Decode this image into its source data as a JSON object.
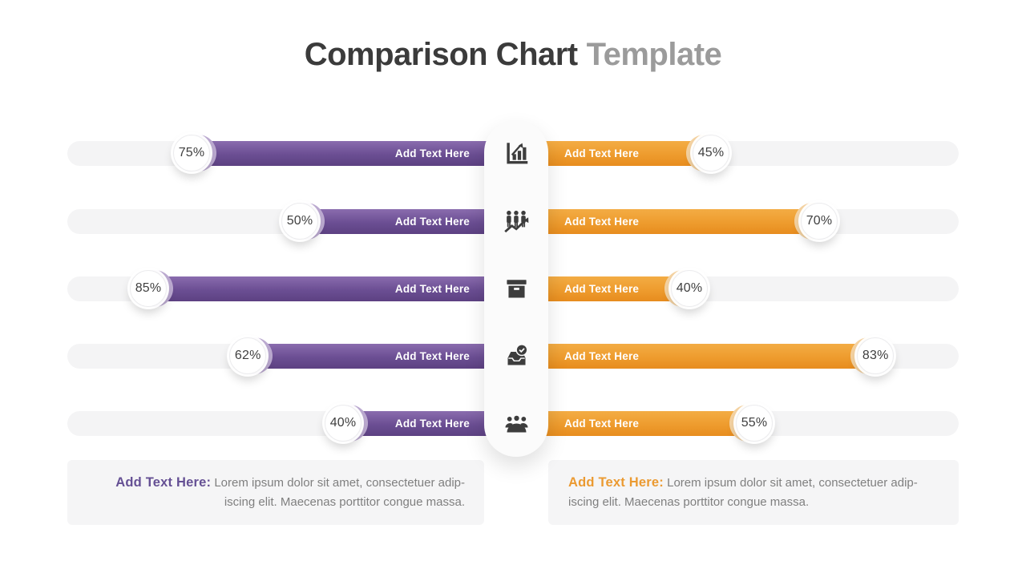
{
  "title": {
    "dark": "Comparison Chart",
    "gray": "Template"
  },
  "rows": [
    {
      "icon": "bar-chart-growth-icon",
      "left": {
        "label": "Add Text Here",
        "pct": "75%",
        "value": 75
      },
      "right": {
        "label": "Add Text Here",
        "pct": "45%",
        "value": 45
      }
    },
    {
      "icon": "people-growth-icon",
      "left": {
        "label": "Add Text Here",
        "pct": "50%",
        "value": 50
      },
      "right": {
        "label": "Add Text Here",
        "pct": "70%",
        "value": 70
      }
    },
    {
      "icon": "archive-box-icon",
      "left": {
        "label": "Add Text Here",
        "pct": "85%",
        "value": 85
      },
      "right": {
        "label": "Add Text Here",
        "pct": "40%",
        "value": 40
      }
    },
    {
      "icon": "inbox-check-icon",
      "left": {
        "label": "Add Text Here",
        "pct": "62%",
        "value": 62
      },
      "right": {
        "label": "Add Text Here",
        "pct": "83%",
        "value": 83
      }
    },
    {
      "icon": "meeting-group-icon",
      "left": {
        "label": "Add Text Here",
        "pct": "40%",
        "value": 40
      },
      "right": {
        "label": "Add Text Here",
        "pct": "55%",
        "value": 55
      }
    }
  ],
  "footers": {
    "left": {
      "heading": "Add Text Here:",
      "line1": "Lorem ipsum dolor sit amet, consectetuer adip-",
      "line2": "iscing elit. Maecenas porttitor congue massa."
    },
    "right": {
      "heading": "Add Text Here:",
      "line1": "Lorem ipsum dolor sit amet, consectetuer adip-",
      "line2": "iscing elit. Maecenas porttitor congue massa."
    }
  },
  "colors": {
    "purple": "#6B4E93",
    "purple_light_cap": "#BCAAD1",
    "orange": "#EE9C2E",
    "orange_light_cap": "#F5D3A2",
    "track_gray": "#F4F4F5",
    "title_dark": "#3B3B3B",
    "title_gray": "#9B9B9B",
    "icon_dark": "#3D3D3D"
  },
  "chart_data": {
    "type": "bar",
    "title": "Comparison Chart Template",
    "orientation": "horizontal, paired back-to-back from center",
    "categories": [
      "bar-chart-growth",
      "people-growth",
      "archive-box",
      "inbox-check",
      "meeting-group"
    ],
    "series": [
      {
        "name": "Left (purple)",
        "color": "#6B4E93",
        "values": [
          75,
          50,
          85,
          62,
          40
        ],
        "bar_label": "Add Text Here"
      },
      {
        "name": "Right (orange)",
        "color": "#EE9C2E",
        "values": [
          45,
          70,
          40,
          83,
          55
        ],
        "bar_label": "Add Text Here"
      }
    ],
    "value_range": [
      0,
      100
    ],
    "data_labels": "percentage shown in white circular badge at bar end",
    "legend": "none",
    "grid": "off"
  }
}
